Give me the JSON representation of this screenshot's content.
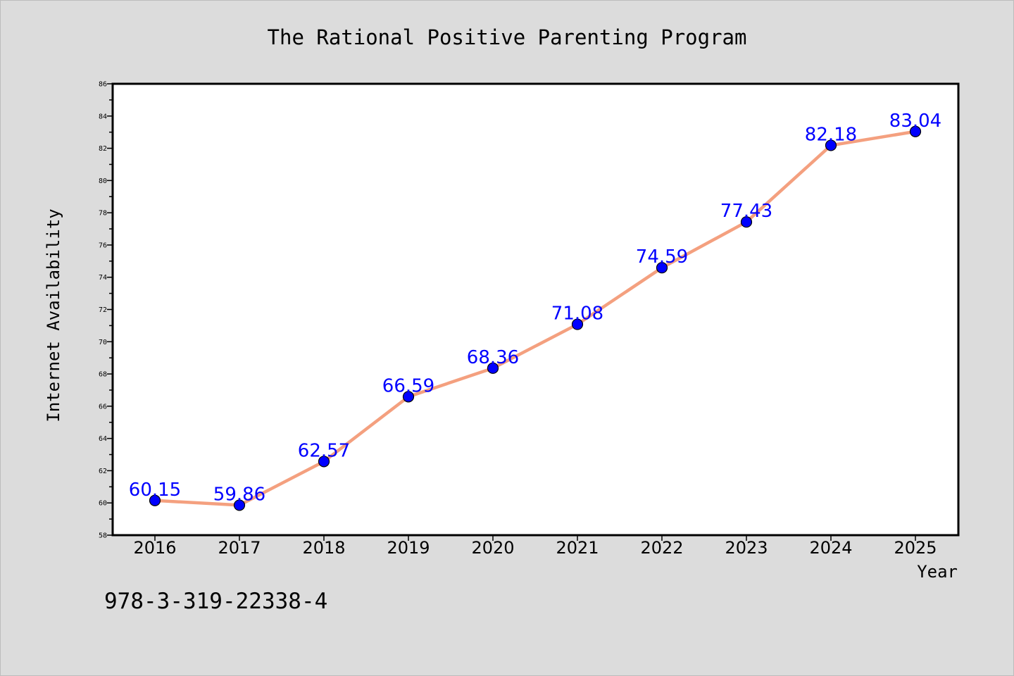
{
  "chart_data": {
    "type": "line",
    "title": "The Rational Positive Parenting Program",
    "xlabel": "Year",
    "ylabel": "Internet Availability",
    "categories": [
      "2016",
      "2017",
      "2018",
      "2019",
      "2020",
      "2021",
      "2022",
      "2023",
      "2024",
      "2025"
    ],
    "series": [
      {
        "values": [
          60.15,
          59.86,
          62.57,
          66.59,
          68.36,
          71.08,
          74.59,
          77.43,
          82.18,
          83.04
        ],
        "line_color": "#f4a07f",
        "marker_color": "#0000ff"
      }
    ],
    "data_labels": [
      "60.15",
      "59.86",
      "62.57",
      "66.59",
      "68.36",
      "71.08",
      "74.59",
      "77.43",
      "82.18",
      "83.04"
    ],
    "ylim": [
      58,
      86
    ],
    "yticks": [
      "58",
      "60",
      "62",
      "64",
      "66",
      "68",
      "70",
      "72",
      "74",
      "76",
      "78",
      "80",
      "82",
      "84",
      "86"
    ],
    "grid": false,
    "legend": "none"
  },
  "annotation": "978-3-319-22338-4"
}
